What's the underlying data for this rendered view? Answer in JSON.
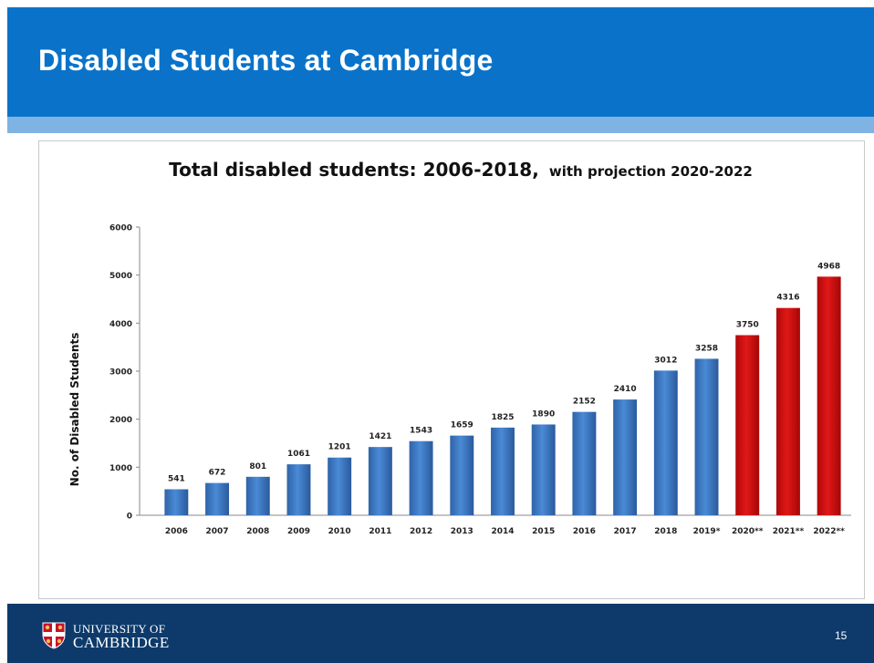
{
  "slide": {
    "title": "Disabled Students at Cambridge",
    "page_number": "15",
    "logo": {
      "line1": "UNIVERSITY OF",
      "line2": "CAMBRIDGE"
    }
  },
  "colors": {
    "header": "#0a73c9",
    "stripe": "#7fb3e3",
    "footer": "#0d3a6b",
    "bar_actual": "#3a76bf",
    "bar_projection": "#d40f0f"
  },
  "chart_data": {
    "type": "bar",
    "title": "Total disabled students: 2006-2018,",
    "subtitle": "with projection 2020-2022",
    "xlabel": "",
    "ylabel": "No. of Disabled Students",
    "ylim": [
      0,
      6000
    ],
    "yticks": [
      0,
      1000,
      2000,
      3000,
      4000,
      5000,
      6000
    ],
    "grid": false,
    "legend": "none",
    "categories": [
      "2006",
      "2007",
      "2008",
      "2009",
      "2010",
      "2011",
      "2012",
      "2013",
      "2014",
      "2015",
      "2016",
      "2017",
      "2018",
      "2019*",
      "2020**",
      "2021**",
      "2022**"
    ],
    "series": [
      {
        "values": [
          541,
          672,
          801,
          1061,
          1201,
          1421,
          1543,
          1659,
          1825,
          1890,
          2152,
          2410,
          3012,
          3258,
          3750,
          4316,
          4968
        ]
      }
    ],
    "projection_categories": [
      "2020**",
      "2021**",
      "2022**"
    ]
  }
}
